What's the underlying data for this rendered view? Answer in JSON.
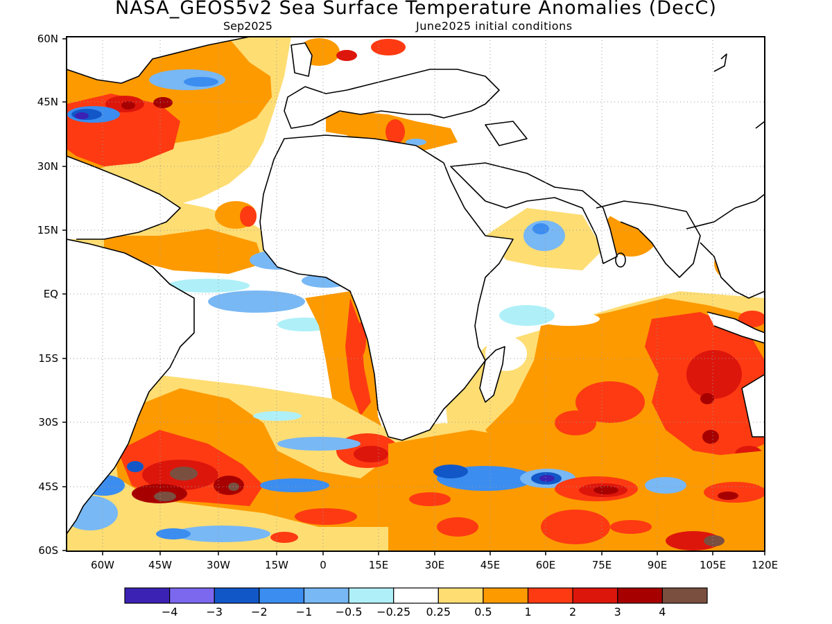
{
  "title": "NASA_GEOS5v2 Sea Surface Temperature Anomalies (DecC)",
  "subtitle_left": "Sep2025",
  "subtitle_right": "June2025 initial conditions",
  "lat_labels": [
    "60N",
    "45N",
    "30N",
    "15N",
    "EQ",
    "15S",
    "30S",
    "45S",
    "60S"
  ],
  "lon_labels": [
    "60W",
    "45W",
    "30W",
    "15W",
    "0",
    "15E",
    "30E",
    "45E",
    "60E",
    "75E",
    "90E",
    "105E",
    "120E"
  ],
  "colorbar": {
    "colors": [
      "#3b22b4",
      "#7b68ee",
      "#1257c8",
      "#3b8df0",
      "#78b8f5",
      "#aff0f8",
      "#ffffff",
      "#fedd73",
      "#fd9a00",
      "#fd3a12",
      "#dd160c",
      "#a70000",
      "#7a4f40"
    ],
    "labels": [
      "−4",
      "−3",
      "−2",
      "−1",
      "−0.5",
      "−0.25",
      "0.25",
      "0.5",
      "1",
      "2",
      "3",
      "4"
    ]
  }
}
